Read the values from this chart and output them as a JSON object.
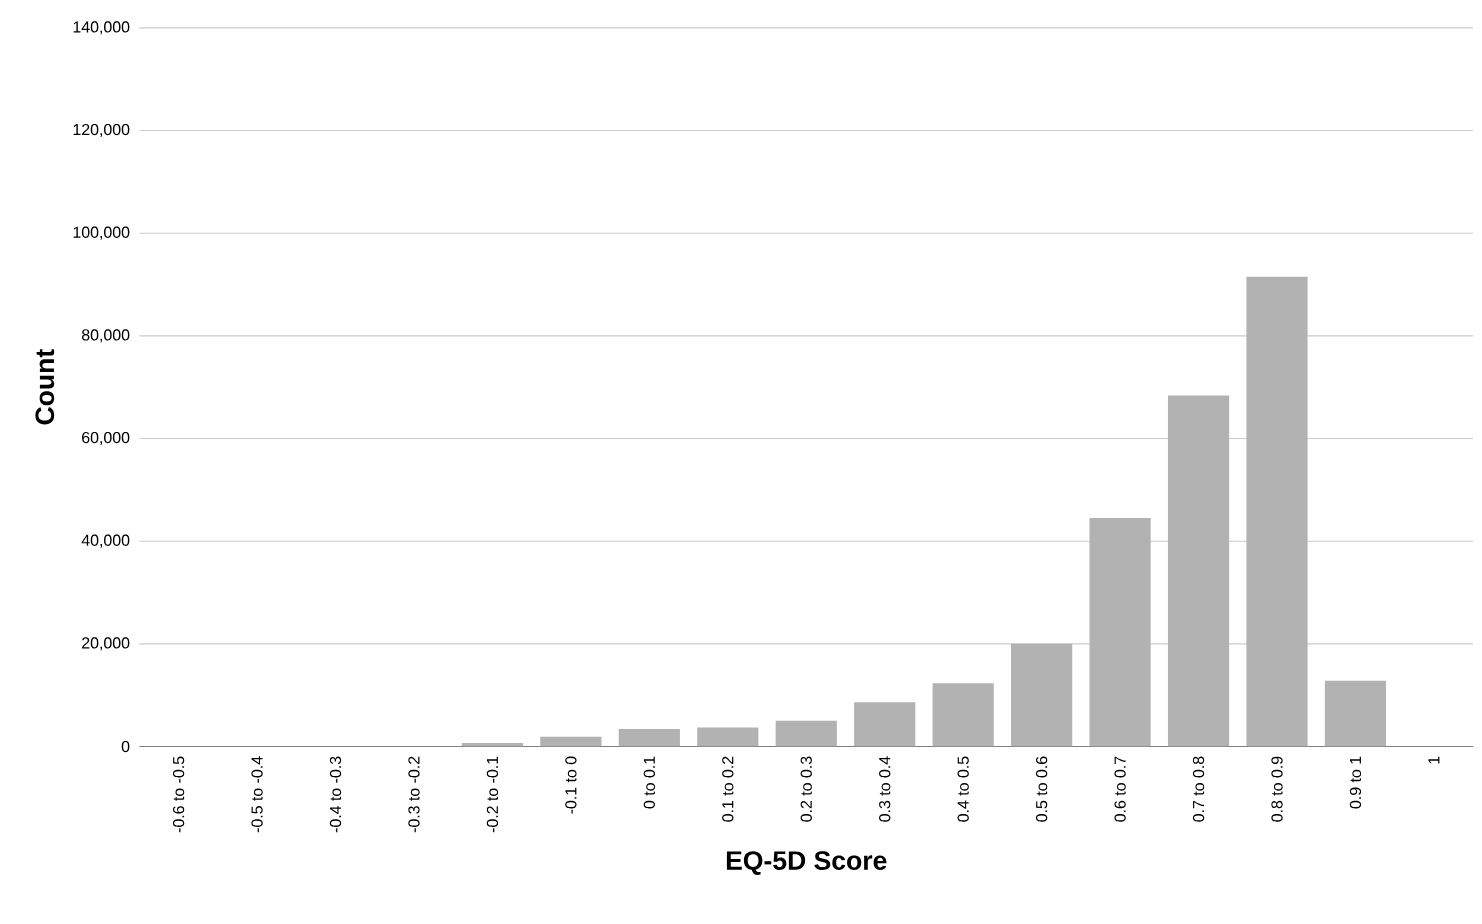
{
  "chart_data": {
    "type": "bar",
    "xlabel": "EQ-5D Score",
    "ylabel": "Count",
    "categories": [
      "-0.6 to -0.5",
      "-0.5 to -0.4",
      "-0.4 to -0.3",
      "-0.3 to -0.2",
      "-0.2 to -0.1",
      "-0.1 to 0",
      "0 to 0.1",
      "0.1 to 0.2",
      "0.2 to 0.3",
      "0.3 to 0.4",
      "0.4 to 0.5",
      "0.5 to 0.6",
      "0.6 to 0.7",
      "0.7 to 0.8",
      "0.8 to 0.9",
      "0.9 to 1",
      "1"
    ],
    "values": [
      null,
      null,
      null,
      null,
      700,
      1900,
      3400,
      3700,
      5000,
      8600,
      12300,
      20000,
      44500,
      68400,
      91500,
      12800,
      0
    ],
    "color": "#b2b2b2",
    "ylim": [
      0,
      140000
    ],
    "yticks": [
      0,
      {
        "value": 20000,
        "label": "20,000"
      },
      {
        "value": 40000,
        "label": "40,000"
      },
      {
        "value": 60000,
        "label": "60,000"
      },
      {
        "value": 80000,
        "label": "80,000"
      },
      {
        "value": 100000,
        "label": "100,000"
      },
      {
        "value": 120000,
        "label": "120,000"
      },
      {
        "value": 140000,
        "label": "140,000"
      }
    ],
    "grid": "y"
  }
}
